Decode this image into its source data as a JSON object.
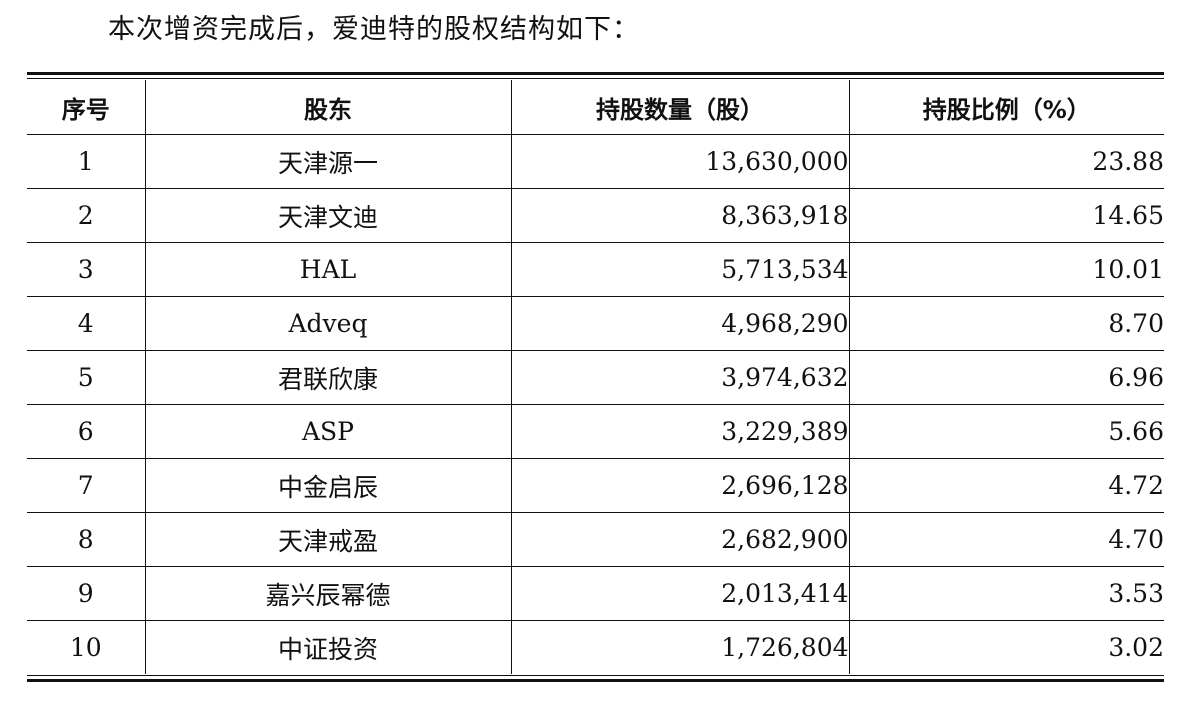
{
  "intro": "本次增资完成后，爱迪特的股权结构如下：",
  "table": {
    "headers": [
      "序号",
      "股东",
      "持股数量（股）",
      "持股比例（%）"
    ],
    "rows": [
      {
        "idx": "1",
        "holder": "天津源一",
        "shares": "13,630,000",
        "ratio": "23.88"
      },
      {
        "idx": "2",
        "holder": "天津文迪",
        "shares": "8,363,918",
        "ratio": "14.65"
      },
      {
        "idx": "3",
        "holder": "HAL",
        "shares": "5,713,534",
        "ratio": "10.01"
      },
      {
        "idx": "4",
        "holder": "Adveq",
        "shares": "4,968,290",
        "ratio": "8.70"
      },
      {
        "idx": "5",
        "holder": "君联欣康",
        "shares": "3,974,632",
        "ratio": "6.96"
      },
      {
        "idx": "6",
        "holder": "ASP",
        "shares": "3,229,389",
        "ratio": "5.66"
      },
      {
        "idx": "7",
        "holder": "中金启辰",
        "shares": "2,696,128",
        "ratio": "4.72"
      },
      {
        "idx": "8",
        "holder": "天津戒盈",
        "shares": "2,682,900",
        "ratio": "4.70"
      },
      {
        "idx": "9",
        "holder": "嘉兴辰幂德",
        "shares": "2,013,414",
        "ratio": "3.53"
      },
      {
        "idx": "10",
        "holder": "中证投资",
        "shares": "1,726,804",
        "ratio": "3.02"
      }
    ]
  }
}
